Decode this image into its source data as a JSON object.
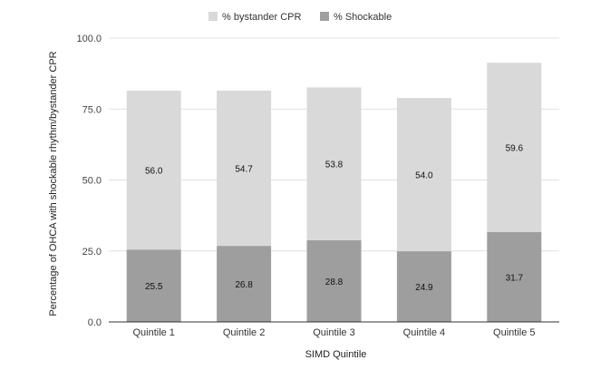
{
  "chart_data": {
    "type": "bar",
    "stacked": true,
    "categories": [
      "Quintile 1",
      "Quintile 2",
      "Quintile 3",
      "Quintile 4",
      "Quintile 5"
    ],
    "series": [
      {
        "name": "% Shockable",
        "values": [
          25.5,
          26.8,
          28.8,
          24.9,
          31.7
        ],
        "color": "#9e9e9e"
      },
      {
        "name": "% bystander CPR",
        "values": [
          56.0,
          54.7,
          53.8,
          54.0,
          59.6
        ],
        "color": "#d9d9d9"
      }
    ],
    "legend_order": [
      "% bystander CPR",
      "% Shockable"
    ],
    "legend_position": "top-center",
    "xlabel": "SIMD Quintile",
    "ylabel": "Percentage of OHCA with shockable rhythm/bystander CPR",
    "ylim": [
      0,
      100
    ],
    "yticks": [
      0.0,
      25.0,
      50.0,
      75.0,
      100.0
    ],
    "ytick_labels": [
      "0.0",
      "25.0",
      "50.0",
      "75.0",
      "100.0"
    ],
    "value_labels": [
      [
        "25.5",
        "26.8",
        "28.8",
        "24.9",
        "31.7"
      ],
      [
        "56.0",
        "54.7",
        "53.8",
        "54.0",
        "59.6"
      ]
    ],
    "grid": true,
    "grid_color": "#e0e0e0",
    "axis_color": "#333333"
  }
}
